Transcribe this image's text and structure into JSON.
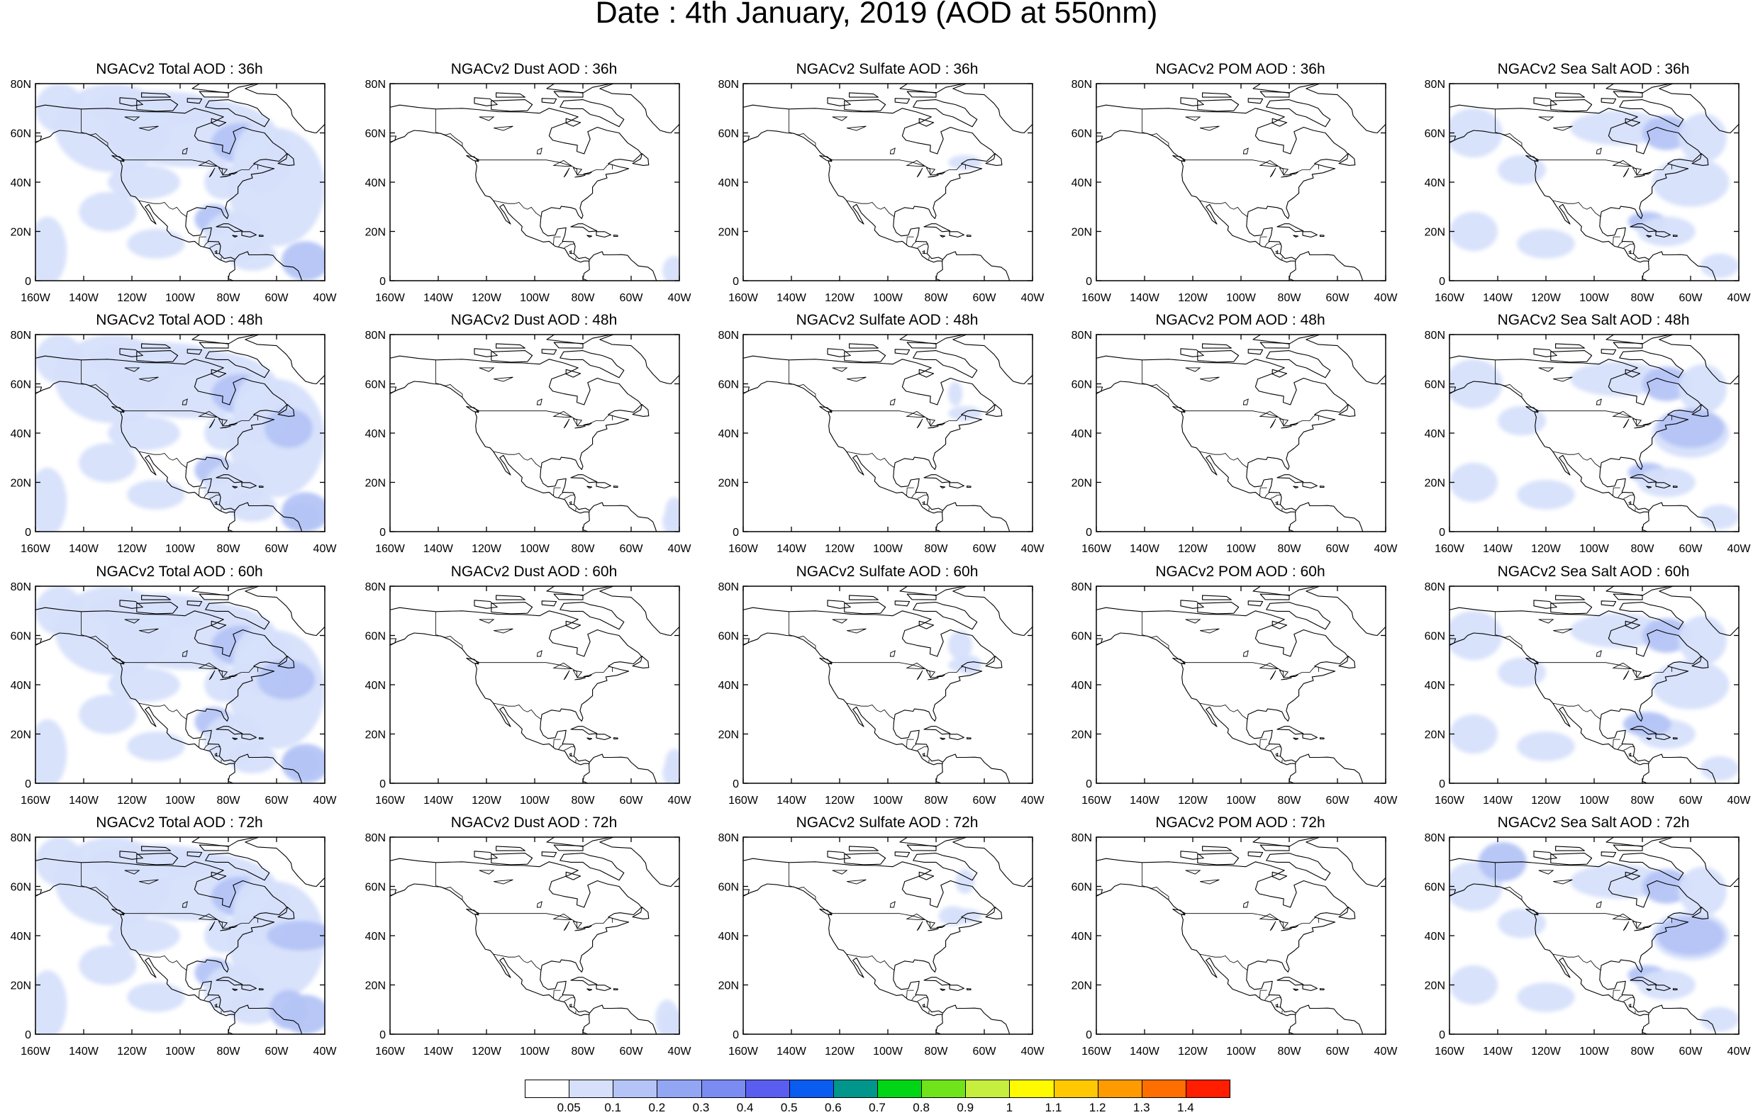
{
  "figure": {
    "title": "Date : 4th January, 2019 (AOD at 550nm)"
  },
  "axes": {
    "x_ticks": [
      "160W",
      "140W",
      "120W",
      "100W",
      "80W",
      "60W",
      "40W"
    ],
    "y_ticks": [
      "0",
      "20N",
      "40N",
      "60N",
      "80N"
    ],
    "lon_range": [
      -160,
      -40
    ],
    "lat_range": [
      0,
      80
    ]
  },
  "panels": [
    [
      {
        "title": "NGACv2 Total AOD : 36h",
        "species": "total",
        "hour": 36
      },
      {
        "title": "NGACv2 Dust AOD : 36h",
        "species": "dust",
        "hour": 36
      },
      {
        "title": "NGACv2 Sulfate AOD : 36h",
        "species": "sulfate",
        "hour": 36
      },
      {
        "title": "NGACv2 POM AOD : 36h",
        "species": "pom",
        "hour": 36
      },
      {
        "title": "NGACv2 Sea Salt AOD : 36h",
        "species": "seasalt",
        "hour": 36
      }
    ],
    [
      {
        "title": "NGACv2 Total AOD : 48h",
        "species": "total",
        "hour": 48
      },
      {
        "title": "NGACv2 Dust AOD : 48h",
        "species": "dust",
        "hour": 48
      },
      {
        "title": "NGACv2 Sulfate AOD : 48h",
        "species": "sulfate",
        "hour": 48
      },
      {
        "title": "NGACv2 POM AOD : 48h",
        "species": "pom",
        "hour": 48
      },
      {
        "title": "NGACv2 Sea Salt AOD : 48h",
        "species": "seasalt",
        "hour": 48
      }
    ],
    [
      {
        "title": "NGACv2 Total AOD : 60h",
        "species": "total",
        "hour": 60
      },
      {
        "title": "NGACv2 Dust AOD : 60h",
        "species": "dust",
        "hour": 60
      },
      {
        "title": "NGACv2 Sulfate AOD : 60h",
        "species": "sulfate",
        "hour": 60
      },
      {
        "title": "NGACv2 POM AOD : 60h",
        "species": "pom",
        "hour": 60
      },
      {
        "title": "NGACv2 Sea Salt AOD : 60h",
        "species": "seasalt",
        "hour": 60
      }
    ],
    [
      {
        "title": "NGACv2 Total AOD : 72h",
        "species": "total",
        "hour": 72
      },
      {
        "title": "NGACv2 Dust AOD : 72h",
        "species": "dust",
        "hour": 72
      },
      {
        "title": "NGACv2 Sulfate AOD : 72h",
        "species": "sulfate",
        "hour": 72
      },
      {
        "title": "NGACv2 POM AOD : 72h",
        "species": "pom",
        "hour": 72
      },
      {
        "title": "NGACv2 Sea Salt  AOD : 72h",
        "species": "seasalt",
        "hour": 72
      }
    ]
  ],
  "colorbar": {
    "labels": [
      "0.05",
      "0.1",
      "0.2",
      "0.3",
      "0.4",
      "0.5",
      "0.6",
      "0.7",
      "0.8",
      "0.9",
      "1",
      "1.1",
      "1.2",
      "1.3",
      "1.4"
    ],
    "colors": [
      "#ffffff",
      "#d6e0fb",
      "#b4c4f6",
      "#92a6f4",
      "#7a8cf2",
      "#5a5ef0",
      "#0a5cf0",
      "#00968c",
      "#00d616",
      "#70e41a",
      "#c6ee3e",
      "#fffa00",
      "#ffc800",
      "#ff9a00",
      "#ff6e00",
      "#ff1e00"
    ]
  },
  "styling": {
    "land_outline": "#000000",
    "panel_border": "#000000",
    "aod_low": "#d6e0fb",
    "aod_mid": "#b4c4f6"
  }
}
